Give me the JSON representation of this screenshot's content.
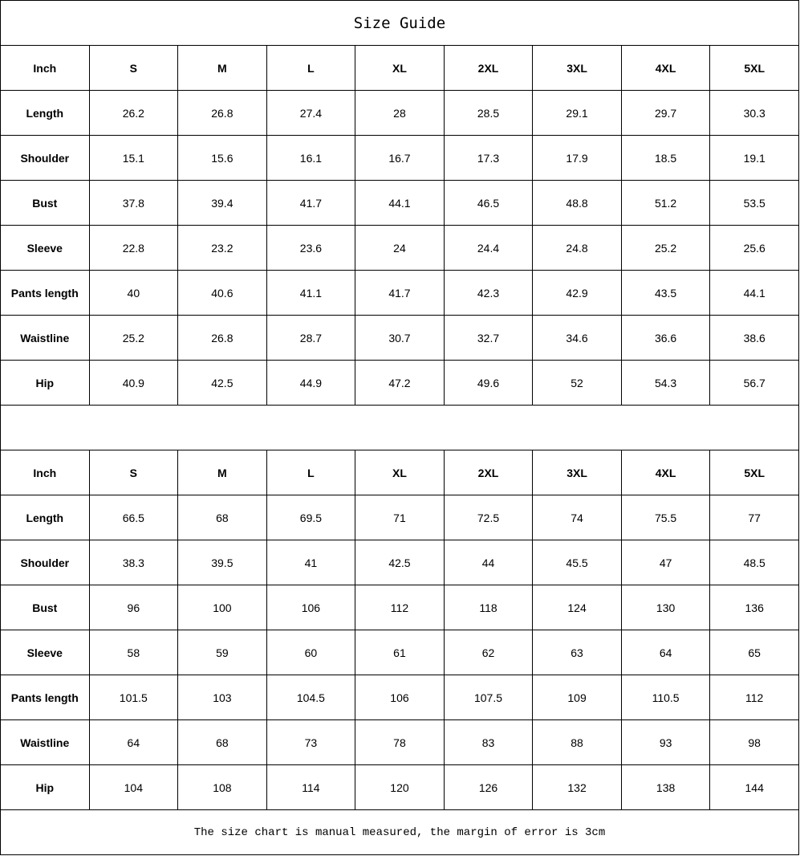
{
  "title": "Size Guide",
  "tables": [
    {
      "header": [
        "Inch",
        "S",
        "M",
        "L",
        "XL",
        "2XL",
        "3XL",
        "4XL",
        "5XL"
      ],
      "rows": [
        [
          "Length",
          "26.2",
          "26.8",
          "27.4",
          "28",
          "28.5",
          "29.1",
          "29.7",
          "30.3"
        ],
        [
          "Shoulder",
          "15.1",
          "15.6",
          "16.1",
          "16.7",
          "17.3",
          "17.9",
          "18.5",
          "19.1"
        ],
        [
          "Bust",
          "37.8",
          "39.4",
          "41.7",
          "44.1",
          "46.5",
          "48.8",
          "51.2",
          "53.5"
        ],
        [
          "Sleeve",
          "22.8",
          "23.2",
          "23.6",
          "24",
          "24.4",
          "24.8",
          "25.2",
          "25.6"
        ],
        [
          "Pants length",
          "40",
          "40.6",
          "41.1",
          "41.7",
          "42.3",
          "42.9",
          "43.5",
          "44.1"
        ],
        [
          "Waistline",
          "25.2",
          "26.8",
          "28.7",
          "30.7",
          "32.7",
          "34.6",
          "36.6",
          "38.6"
        ],
        [
          "Hip",
          "40.9",
          "42.5",
          "44.9",
          "47.2",
          "49.6",
          "52",
          "54.3",
          "56.7"
        ]
      ]
    },
    {
      "header": [
        "Inch",
        "S",
        "M",
        "L",
        "XL",
        "2XL",
        "3XL",
        "4XL",
        "5XL"
      ],
      "rows": [
        [
          "Length",
          "66.5",
          "68",
          "69.5",
          "71",
          "72.5",
          "74",
          "75.5",
          "77"
        ],
        [
          "Shoulder",
          "38.3",
          "39.5",
          "41",
          "42.5",
          "44",
          "45.5",
          "47",
          "48.5"
        ],
        [
          "Bust",
          "96",
          "100",
          "106",
          "112",
          "118",
          "124",
          "130",
          "136"
        ],
        [
          "Sleeve",
          "58",
          "59",
          "60",
          "61",
          "62",
          "63",
          "64",
          "65"
        ],
        [
          "Pants length",
          "101.5",
          "103",
          "104.5",
          "106",
          "107.5",
          "109",
          "110.5",
          "112"
        ],
        [
          "Waistline",
          "64",
          "68",
          "73",
          "78",
          "83",
          "88",
          "93",
          "98"
        ],
        [
          "Hip",
          "104",
          "108",
          "114",
          "120",
          "126",
          "132",
          "138",
          "144"
        ]
      ]
    }
  ],
  "note": "The size chart is manual measured, the margin of error is 3cm"
}
